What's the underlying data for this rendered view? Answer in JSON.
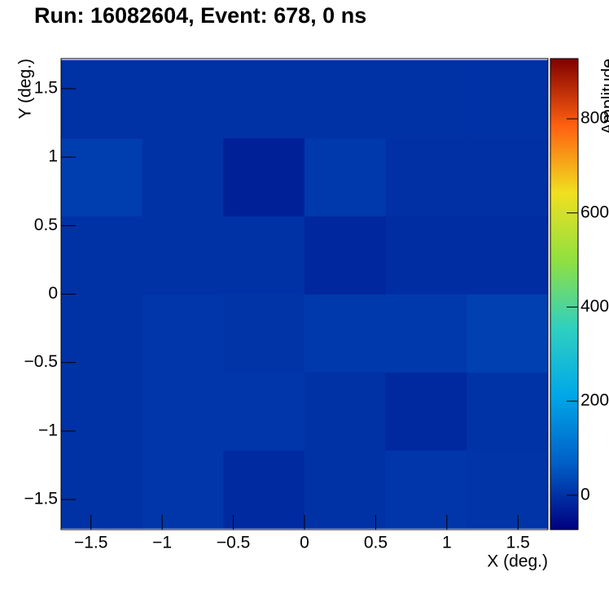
{
  "chart_data": {
    "type": "heatmap",
    "title": "Run: 16082604, Event: 678, 0 ns",
    "x_label": "X (deg.)",
    "y_label": "Y (deg.)",
    "z_label": "Amplitude",
    "xbins": [
      -1.71,
      -1.14,
      -0.57,
      0,
      0.57,
      1.14,
      1.71
    ],
    "ybins": [
      -1.71,
      -1.14,
      -0.57,
      0,
      0.57,
      1.14,
      1.71
    ],
    "values": [
      [
        2,
        8,
        -10,
        2,
        8,
        5
      ],
      [
        2,
        8,
        8,
        0,
        -12,
        3
      ],
      [
        2,
        8,
        5,
        12,
        12,
        22
      ],
      [
        2,
        2,
        2,
        -15,
        -5,
        -5
      ],
      [
        18,
        2,
        -25,
        12,
        -2,
        -2
      ],
      [
        0,
        0,
        0,
        0,
        0,
        0
      ]
    ],
    "xlim": [
      -1.71,
      1.71
    ],
    "ylim": [
      -1.72,
      1.72
    ],
    "zlim": [
      -73,
      928
    ],
    "xticks": [
      {
        "value": -1.5,
        "label": "−1.5"
      },
      {
        "value": -1,
        "label": "−1"
      },
      {
        "value": -0.5,
        "label": "−0.5"
      },
      0,
      0.5,
      1,
      1.5
    ],
    "yticks": [
      {
        "value": -1.5,
        "label": "−1.5"
      },
      {
        "value": -1,
        "label": "−1"
      },
      {
        "value": -0.5,
        "label": "−0.5"
      },
      0,
      0.5,
      1,
      1.5
    ],
    "zticks": [
      0,
      200,
      400,
      600,
      800
    ],
    "colorscale": [
      "#000080",
      "#0060c8",
      "#00a8e8",
      "#30d0c0",
      "#90e040",
      "#f0e020",
      "#ff6010",
      "#800000"
    ]
  }
}
